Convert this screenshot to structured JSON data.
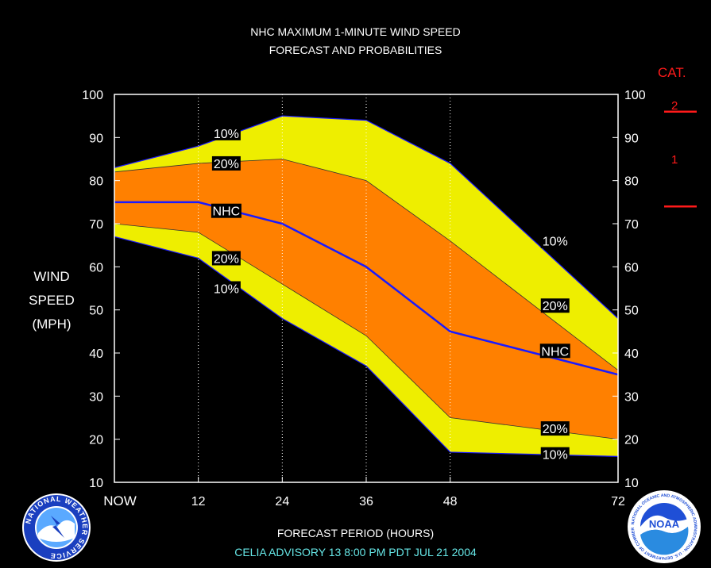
{
  "title_line1": "NHC MAXIMUM 1-MINUTE WIND SPEED",
  "title_line2": "FORECAST AND PROBABILITIES",
  "ylabel_lines": [
    "WIND",
    "SPEED",
    "(MPH)"
  ],
  "xlabel": "FORECAST PERIOD (HOURS)",
  "advisory": "CELIA   ADVISORY  13  8:00  PM  PDT  JUL 21 2004",
  "cat_title": "CAT.",
  "cat_labels": [
    "2",
    "1"
  ],
  "logos": {
    "nws": "NATIONAL WEATHER SERVICE",
    "noaa": "NOAA",
    "noaa_ring": "NATIONAL OCEANIC AND ATMOSPHERIC ADMINISTRATION · U.S. DEPARTMENT OF COMMERCE"
  },
  "colors": {
    "band10": "#eeee00",
    "band20": "#ff8000",
    "nhc_line": "#1a1aff",
    "category": "#ff1a1a",
    "footer": "#66e6e6"
  },
  "chart_data": {
    "type": "area",
    "x": [
      0,
      12,
      24,
      36,
      48,
      72
    ],
    "xticks": [
      "NOW",
      "12",
      "24",
      "36",
      "48",
      "72"
    ],
    "gridlines_x": [
      12,
      24,
      36,
      48
    ],
    "xlim": [
      0,
      72
    ],
    "ylim": [
      10,
      100
    ],
    "yticks": [
      10,
      20,
      30,
      40,
      50,
      60,
      70,
      80,
      90,
      100
    ],
    "xlabel": "FORECAST PERIOD (HOURS)",
    "ylabel": "WIND SPEED (MPH)",
    "series": [
      {
        "name": "10%",
        "values": [
          83,
          88,
          95,
          94,
          84,
          48
        ]
      },
      {
        "name": "20%",
        "values": [
          82,
          84,
          85,
          80,
          66,
          36
        ]
      },
      {
        "name": "NHC",
        "values": [
          75,
          75,
          70,
          60,
          45,
          35
        ]
      },
      {
        "name": "20%",
        "values": [
          70,
          68,
          56,
          44,
          25,
          20
        ]
      },
      {
        "name": "10%",
        "values": [
          67,
          62,
          48,
          37,
          17,
          16
        ]
      }
    ],
    "category_thresholds": [
      {
        "category": "1",
        "min_mph": 74
      },
      {
        "category": "2",
        "min_mph": 96
      }
    ],
    "band_labels": [
      {
        "text": "10%",
        "x": 16,
        "y": 91
      },
      {
        "text": "20%",
        "x": 16,
        "y": 84
      },
      {
        "text": "NHC",
        "x": 16,
        "y": 73
      },
      {
        "text": "20%",
        "x": 16,
        "y": 62
      },
      {
        "text": "10%",
        "x": 16,
        "y": 55
      },
      {
        "text": "10%",
        "x": 63,
        "y": 66
      },
      {
        "text": "20%",
        "x": 63,
        "y": 51
      },
      {
        "text": "NHC",
        "x": 63,
        "y": 40.5
      },
      {
        "text": "20%",
        "x": 63,
        "y": 22.5
      },
      {
        "text": "10%",
        "x": 63,
        "y": 16.5
      }
    ]
  }
}
